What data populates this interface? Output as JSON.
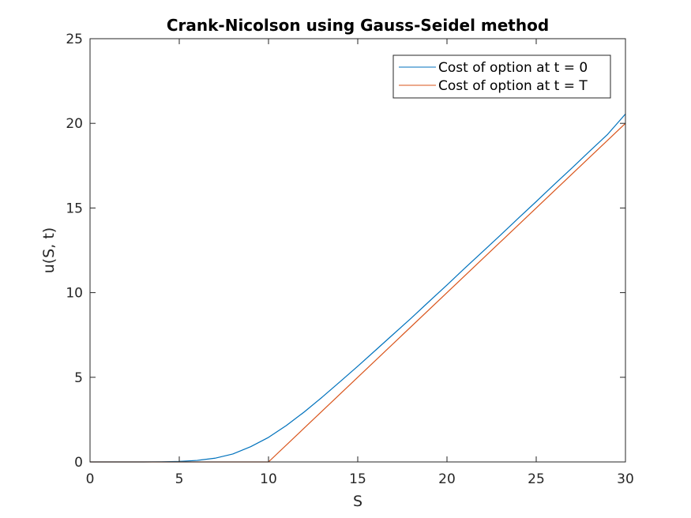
{
  "chart_data": {
    "type": "line",
    "title": "Crank-Nicolson using Gauss-Seidel method",
    "xlabel": "S",
    "ylabel": "u(S, t)",
    "xlim": [
      0,
      30
    ],
    "ylim": [
      0,
      25
    ],
    "xticks": [
      0,
      5,
      10,
      15,
      20,
      25,
      30
    ],
    "yticks": [
      0,
      5,
      10,
      15,
      20,
      25
    ],
    "grid": false,
    "legend_position": "top-right",
    "series": [
      {
        "name": "Cost of option at t = 0",
        "color": "#0072BD",
        "x": [
          0,
          1,
          2,
          3,
          4,
          5,
          6,
          7,
          8,
          9,
          10,
          11,
          12,
          13,
          14,
          15,
          16,
          17,
          18,
          19,
          20,
          21,
          22,
          23,
          24,
          25,
          26,
          27,
          28,
          29,
          30
        ],
        "y": [
          0,
          0,
          0,
          0,
          0.01,
          0.03,
          0.09,
          0.22,
          0.47,
          0.9,
          1.45,
          2.15,
          2.95,
          3.82,
          4.73,
          5.65,
          6.6,
          7.55,
          8.5,
          9.48,
          10.45,
          11.45,
          12.42,
          13.4,
          14.4,
          15.38,
          16.38,
          17.36,
          18.36,
          19.35,
          20.55
        ]
      },
      {
        "name": "Cost of option at t = T",
        "color": "#D95319",
        "x": [
          0,
          10,
          30
        ],
        "y": [
          0,
          0,
          20
        ]
      }
    ]
  }
}
